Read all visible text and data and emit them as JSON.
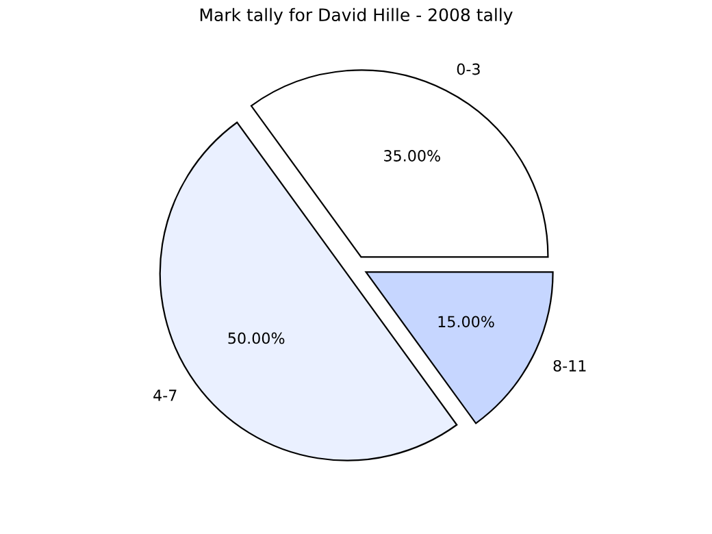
{
  "chart_data": {
    "type": "pie",
    "title": "Mark tally for David Hille - 2008 tally",
    "categories": [
      "0-3",
      "4-7",
      "8-11"
    ],
    "values": [
      35,
      50,
      15
    ],
    "value_labels": [
      "35.00%",
      "50.00%",
      "15.00%"
    ],
    "colors": [
      "#ffffff",
      "#eaf0ff",
      "#c6d6ff"
    ],
    "legend": false
  }
}
